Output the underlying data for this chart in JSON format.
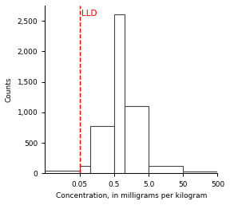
{
  "xlabel": "Concentration, in milligrams per kilogram",
  "ylabel": "Counts",
  "bar_edges": [
    0.005,
    0.05,
    0.1,
    0.5,
    1.0,
    5.0,
    50.0,
    500.0
  ],
  "bar_heights": [
    50,
    130,
    775,
    2600,
    1100,
    120,
    30
  ],
  "lld_x": 0.05,
  "lld_label": "LLD",
  "bar_facecolor": "white",
  "bar_edgecolor": "#444444",
  "lld_color": "red",
  "ylim": [
    0,
    2750
  ],
  "yticks": [
    0,
    500,
    1000,
    1500,
    2000,
    2500
  ],
  "xticks": [
    0.05,
    0.5,
    5.0,
    50.0,
    500.0
  ],
  "xticklabels": [
    "0.05",
    "0.5",
    "5.0",
    "50",
    "500"
  ],
  "xlim_left": 0.005,
  "xlim_right": 500.0,
  "background_color": "white",
  "label_fontsize": 6.5,
  "tick_fontsize": 6.5,
  "lld_fontsize": 7.5
}
